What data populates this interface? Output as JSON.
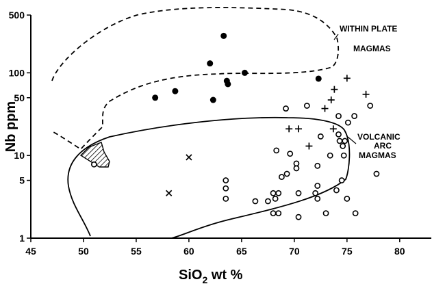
{
  "chart_data": {
    "type": "scatter",
    "title": "",
    "xlabel": "SiO",
    "xlabel_sub": "2",
    "xlabel_suffix": " wt %",
    "ylabel": "Nb ppm",
    "xlim": [
      45,
      83
    ],
    "ylim": [
      1,
      500
    ],
    "y_scale": "log",
    "grid": false,
    "x_ticks": [
      45,
      50,
      55,
      60,
      65,
      70,
      75,
      80
    ],
    "x_tick_labels": [
      "45",
      "50",
      "55",
      "60",
      "65",
      "70",
      "75",
      "80"
    ],
    "y_ticks": [
      1,
      5,
      10,
      50,
      100,
      500
    ],
    "y_tick_labels": [
      "1",
      "5",
      "10",
      "50",
      "100",
      "500"
    ],
    "series": [
      {
        "marker": "filled-circle",
        "points": [
          [
            56.8,
            50
          ],
          [
            58.7,
            60
          ],
          [
            62,
            130
          ],
          [
            62.3,
            47
          ],
          [
            63.3,
            280
          ],
          [
            63.6,
            80
          ],
          [
            63.7,
            73
          ],
          [
            65.3,
            100
          ],
          [
            72.3,
            85
          ]
        ]
      },
      {
        "marker": "cross",
        "points": [
          [
            60,
            9.5
          ],
          [
            58.1,
            3.5
          ]
        ]
      },
      {
        "marker": "plus",
        "points": [
          [
            69.5,
            21
          ],
          [
            70.4,
            21
          ],
          [
            71.4,
            13
          ],
          [
            72.9,
            37
          ],
          [
            73.5,
            47
          ],
          [
            73.8,
            63
          ],
          [
            73.7,
            21
          ],
          [
            75,
            86
          ],
          [
            76.8,
            55
          ]
        ]
      },
      {
        "marker": "open-circle",
        "points": [
          [
            51,
            7.8
          ],
          [
            63.5,
            5
          ],
          [
            63.5,
            4
          ],
          [
            63.5,
            3
          ],
          [
            66.3,
            2.8
          ],
          [
            67.5,
            2.8
          ],
          [
            68,
            3.5
          ],
          [
            68.5,
            3.5
          ],
          [
            68.2,
            3
          ],
          [
            68,
            2
          ],
          [
            68.5,
            2
          ],
          [
            68.3,
            11.5
          ],
          [
            68.8,
            5.5
          ],
          [
            69.3,
            6
          ],
          [
            69.2,
            37
          ],
          [
            69.6,
            10.5
          ],
          [
            70.2,
            8
          ],
          [
            70.2,
            7
          ],
          [
            70.4,
            3.5
          ],
          [
            70.4,
            1.8
          ],
          [
            71.2,
            40
          ],
          [
            72,
            3.5
          ],
          [
            72.2,
            3
          ],
          [
            72.2,
            7.5
          ],
          [
            72.2,
            4.3
          ],
          [
            72.5,
            17
          ],
          [
            73,
            2
          ],
          [
            73.4,
            10
          ],
          [
            74,
            3.8
          ],
          [
            74.2,
            30
          ],
          [
            74.2,
            18
          ],
          [
            74.3,
            15
          ],
          [
            74.6,
            13
          ],
          [
            74.7,
            10
          ],
          [
            74.5,
            5
          ],
          [
            74.8,
            15
          ],
          [
            75.1,
            25
          ],
          [
            75,
            3
          ],
          [
            75.7,
            30
          ],
          [
            75.8,
            2
          ],
          [
            77.2,
            40
          ],
          [
            77.8,
            6
          ]
        ]
      }
    ],
    "regions": [
      {
        "name": "WITHIN PLATE MAGMAS",
        "style": "dashed"
      },
      {
        "name": "VOLCANIC ARC MAGMAS",
        "style": "solid"
      },
      {
        "name": "overlap",
        "style": "hatched"
      }
    ],
    "annotations": [
      {
        "lines": [
          "WITHIN PLATE",
          "MAGMAS"
        ]
      },
      {
        "lines": [
          "VOLCANIC",
          "ARC",
          "MAGMAS"
        ]
      }
    ]
  }
}
